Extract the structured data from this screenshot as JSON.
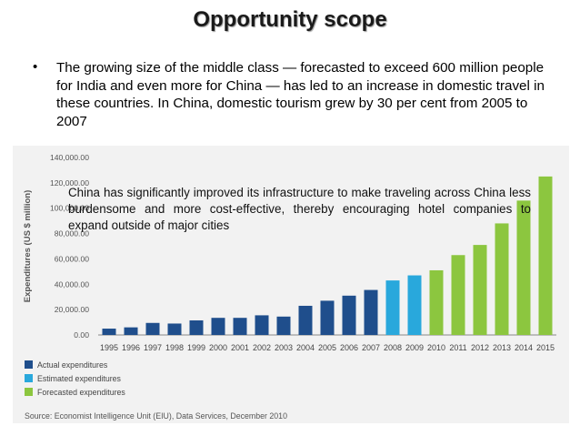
{
  "slide": {
    "title": "Opportunity scope",
    "bullet_symbol": "•",
    "bullet_text": "The growing size of the middle class — forecasted to exceed 600 million people for India and even more for China — has led to an increase in domestic travel in these countries. In China, domestic tourism grew by 30 per cent from 2005 to 2007",
    "overlay_note": "China has significantly improved its infrastructure to make traveling across China less burdensome and more cost-effective, thereby encouraging hotel companies to expand outside of major cities"
  },
  "chart_data": {
    "type": "bar",
    "title": "",
    "xlabel": "",
    "ylabel": "Expenditures (US $ million)",
    "ylim": [
      0,
      140000
    ],
    "yticks": [
      0,
      20000,
      40000,
      60000,
      80000,
      100000,
      120000,
      140000
    ],
    "ytick_labels": [
      "0.00",
      "20,000.00",
      "40,000.00",
      "60,000.00",
      "80,000.00",
      "100,000.00",
      "120,000.00",
      "140,000.00"
    ],
    "categories": [
      "1995",
      "1996",
      "1997",
      "1998",
      "1999",
      "2000",
      "2001",
      "2002",
      "2003",
      "2004",
      "2005",
      "2006",
      "2007",
      "2008",
      "2009",
      "2010",
      "2011",
      "2012",
      "2013",
      "2014",
      "2015"
    ],
    "values": [
      5000,
      6000,
      9500,
      9000,
      11500,
      13500,
      13500,
      15500,
      14500,
      23000,
      27000,
      31000,
      35500,
      43000,
      47000,
      51000,
      63000,
      71000,
      88000,
      106000,
      125000
    ],
    "series_kind": [
      "actual",
      "actual",
      "actual",
      "actual",
      "actual",
      "actual",
      "actual",
      "actual",
      "actual",
      "actual",
      "actual",
      "actual",
      "actual",
      "estimated",
      "estimated",
      "forecast",
      "forecast",
      "forecast",
      "forecast",
      "forecast",
      "forecast"
    ],
    "legend": [
      {
        "key": "actual",
        "label": "Actual expenditures",
        "color": "#1f4e8c"
      },
      {
        "key": "estimated",
        "label": "Estimated expenditures",
        "color": "#29a8dc"
      },
      {
        "key": "forecast",
        "label": "Forecasted expenditures",
        "color": "#8cc63f"
      }
    ],
    "legend_position": "bottom-left",
    "source": "Source: Economist Intelligence Unit (EIU), Data Services, December 2010"
  }
}
